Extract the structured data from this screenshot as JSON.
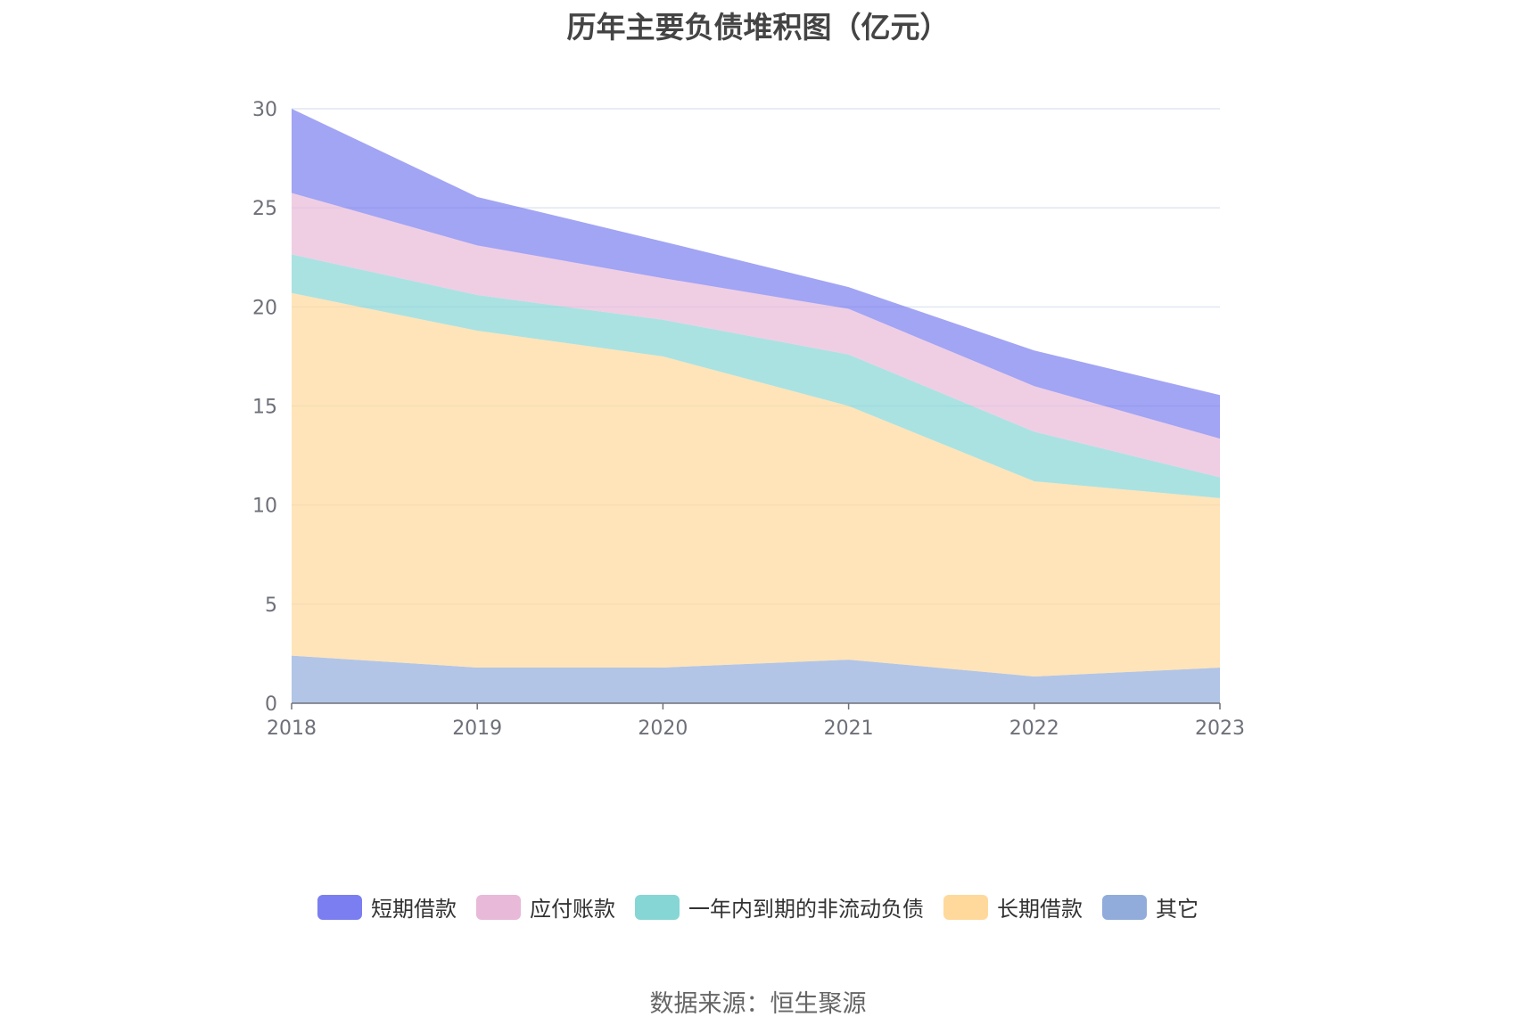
{
  "chart_data": {
    "type": "area",
    "stacked": true,
    "title": "历年主要负债堆积图（亿元）",
    "x": [
      "2018",
      "2019",
      "2020",
      "2021",
      "2022",
      "2023"
    ],
    "ylim": [
      0,
      30
    ],
    "yticks": [
      0,
      5,
      10,
      15,
      20,
      25,
      30
    ],
    "grid": true,
    "legend_position": "bottom",
    "series": [
      {
        "name": "其它",
        "color": "#91acdb",
        "values": [
          2.4,
          1.8,
          1.8,
          2.2,
          1.35,
          1.8
        ]
      },
      {
        "name": "长期借款",
        "color": "#ffd99b",
        "values": [
          18.3,
          17.0,
          15.7,
          12.8,
          9.85,
          8.55
        ]
      },
      {
        "name": "一年内到期的非流动负债",
        "color": "#86d6d6",
        "values": [
          1.95,
          1.8,
          1.85,
          2.6,
          2.5,
          1.05
        ]
      },
      {
        "name": "应付账款",
        "color": "#e8b9d8",
        "values": [
          3.1,
          2.5,
          2.1,
          2.3,
          2.3,
          1.95
        ]
      },
      {
        "name": "短期借款",
        "color": "#7b7ef0",
        "values": [
          4.25,
          2.45,
          1.85,
          1.1,
          1.8,
          2.2
        ]
      }
    ],
    "legend_order": [
      "短期借款",
      "应付账款",
      "一年内到期的非流动负债",
      "长期借款",
      "其它"
    ]
  },
  "source": "数据来源：恒生聚源"
}
